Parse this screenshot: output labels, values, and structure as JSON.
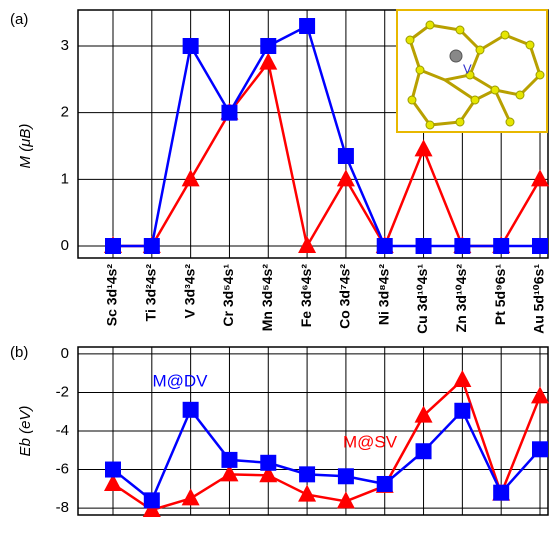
{
  "chart_data": [
    {
      "type": "line",
      "panel_label": "(a)",
      "ylabel": "M (μB)",
      "inset_label": "V",
      "categories": [
        "Sc  3d¹4s²",
        "Ti  3d²4s²",
        "V  3d³4s²",
        "Cr  3d⁵4s¹",
        "Mn  3d⁵4s²",
        "Fe  3d⁶4s²",
        "Co  3d⁷4s²",
        "Ni  3d⁸4s²",
        "Cu  3d¹⁰4s¹",
        "Zn  3d¹⁰4s²",
        "Pt  5d⁹6s¹",
        "Au  5d¹⁰6s¹"
      ],
      "series": [
        {
          "name": "M@SV",
          "color": "#ff0000",
          "marker": "triangle",
          "values": [
            0,
            0,
            1,
            2,
            2.75,
            0,
            1,
            0,
            1.45,
            0,
            0,
            1
          ]
        },
        {
          "name": "M@DV",
          "color": "#0000ff",
          "marker": "square",
          "values": [
            0,
            0,
            3,
            2,
            3,
            3.3,
            1.35,
            0,
            0,
            0,
            0,
            0
          ]
        }
      ],
      "ylim": [
        -0.18,
        3.54
      ],
      "yticks": [
        0,
        1,
        2,
        3
      ],
      "grid": true
    },
    {
      "type": "line",
      "panel_label": "(b)",
      "ylabel": "Eb (eV)",
      "series": [
        {
          "name": "M@SV",
          "color": "#ff0000",
          "marker": "triangle",
          "values": [
            -6.75,
            -8.1,
            -7.5,
            -6.25,
            -6.3,
            -7.3,
            -7.65,
            -6.85,
            -3.2,
            -1.35,
            -7.25,
            -2.2
          ]
        },
        {
          "name": "M@DV",
          "color": "#0000ff",
          "marker": "square",
          "values": [
            -6.0,
            -7.6,
            -2.9,
            -5.5,
            -5.65,
            -6.25,
            -6.35,
            -6.75,
            -5.05,
            -2.95,
            -7.2,
            -4.95
          ]
        }
      ],
      "ylim": [
        -8.36,
        0.36
      ],
      "yticks": [
        0,
        -2,
        -4,
        -6,
        -8
      ],
      "grid": true
    }
  ]
}
